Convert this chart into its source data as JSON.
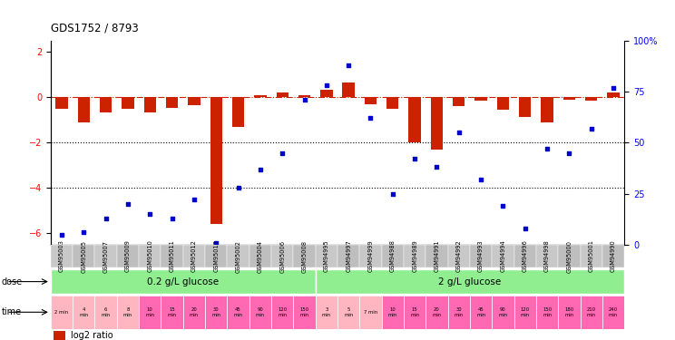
{
  "title": "GDS1752 / 8793",
  "samples": [
    "GSM95003",
    "GSM95005",
    "GSM95007",
    "GSM95009",
    "GSM95010",
    "GSM95011",
    "GSM95012",
    "GSM95013",
    "GSM95002",
    "GSM95004",
    "GSM95006",
    "GSM95008",
    "GSM94995",
    "GSM94997",
    "GSM94999",
    "GSM94988",
    "GSM94989",
    "GSM94991",
    "GSM94992",
    "GSM94993",
    "GSM94994",
    "GSM94996",
    "GSM94998",
    "GSM95000",
    "GSM95001",
    "GSM94990"
  ],
  "log2_ratio": [
    -0.5,
    -1.1,
    -0.65,
    -0.5,
    -0.65,
    -0.45,
    -0.35,
    -5.6,
    -1.3,
    0.1,
    0.2,
    0.1,
    0.35,
    0.65,
    -0.3,
    -0.5,
    -2.0,
    -2.3,
    -0.4,
    -0.15,
    -0.55,
    -0.85,
    -1.1,
    -0.1,
    -0.15,
    0.2
  ],
  "percentile": [
    5,
    6,
    13,
    20,
    15,
    13,
    22,
    1,
    28,
    37,
    45,
    71,
    78,
    88,
    62,
    25,
    42,
    38,
    55,
    32,
    19,
    8,
    47,
    45,
    57,
    77
  ],
  "n_group1": 12,
  "n_group2": 14,
  "dose_label1": "0.2 g/L glucose",
  "dose_label2": "2 g/L glucose",
  "dose_color": "#90EE90",
  "time_labels": [
    "2 min",
    "4\nmin",
    "6\nmin",
    "8\nmin",
    "10\nmin",
    "15\nmin",
    "20\nmin",
    "30\nmin",
    "45\nmin",
    "90\nmin",
    "120\nmin",
    "150\nmin",
    "3\nmin",
    "5\nmin",
    "7 min",
    "10\nmin",
    "15\nmin",
    "20\nmin",
    "30\nmin",
    "45\nmin",
    "90\nmin",
    "120\nmin",
    "150\nmin",
    "180\nmin",
    "210\nmin",
    "240\nmin"
  ],
  "time_colors": [
    "#FFB6C1",
    "#FFB6C1",
    "#FFB6C1",
    "#FFB6C1",
    "#FF69B4",
    "#FF69B4",
    "#FF69B4",
    "#FF69B4",
    "#FF69B4",
    "#FF69B4",
    "#FF69B4",
    "#FF69B4",
    "#FFB6C1",
    "#FFB6C1",
    "#FFB6C1",
    "#FF69B4",
    "#FF69B4",
    "#FF69B4",
    "#FF69B4",
    "#FF69B4",
    "#FF69B4",
    "#FF69B4",
    "#FF69B4",
    "#FF69B4",
    "#FF69B4",
    "#FF69B4"
  ],
  "bar_color": "#CC2200",
  "dot_color": "#0000CC",
  "ylim_left": [
    -6.5,
    2.5
  ],
  "ylim_right": [
    0,
    100
  ],
  "yticks_left": [
    -6,
    -4,
    -2,
    0,
    2
  ],
  "yticks_right": [
    0,
    25,
    50,
    75,
    100
  ],
  "dotted_lines": [
    -2,
    -4
  ],
  "sample_box_color": "#D0D0D0",
  "background_color": "#ffffff"
}
